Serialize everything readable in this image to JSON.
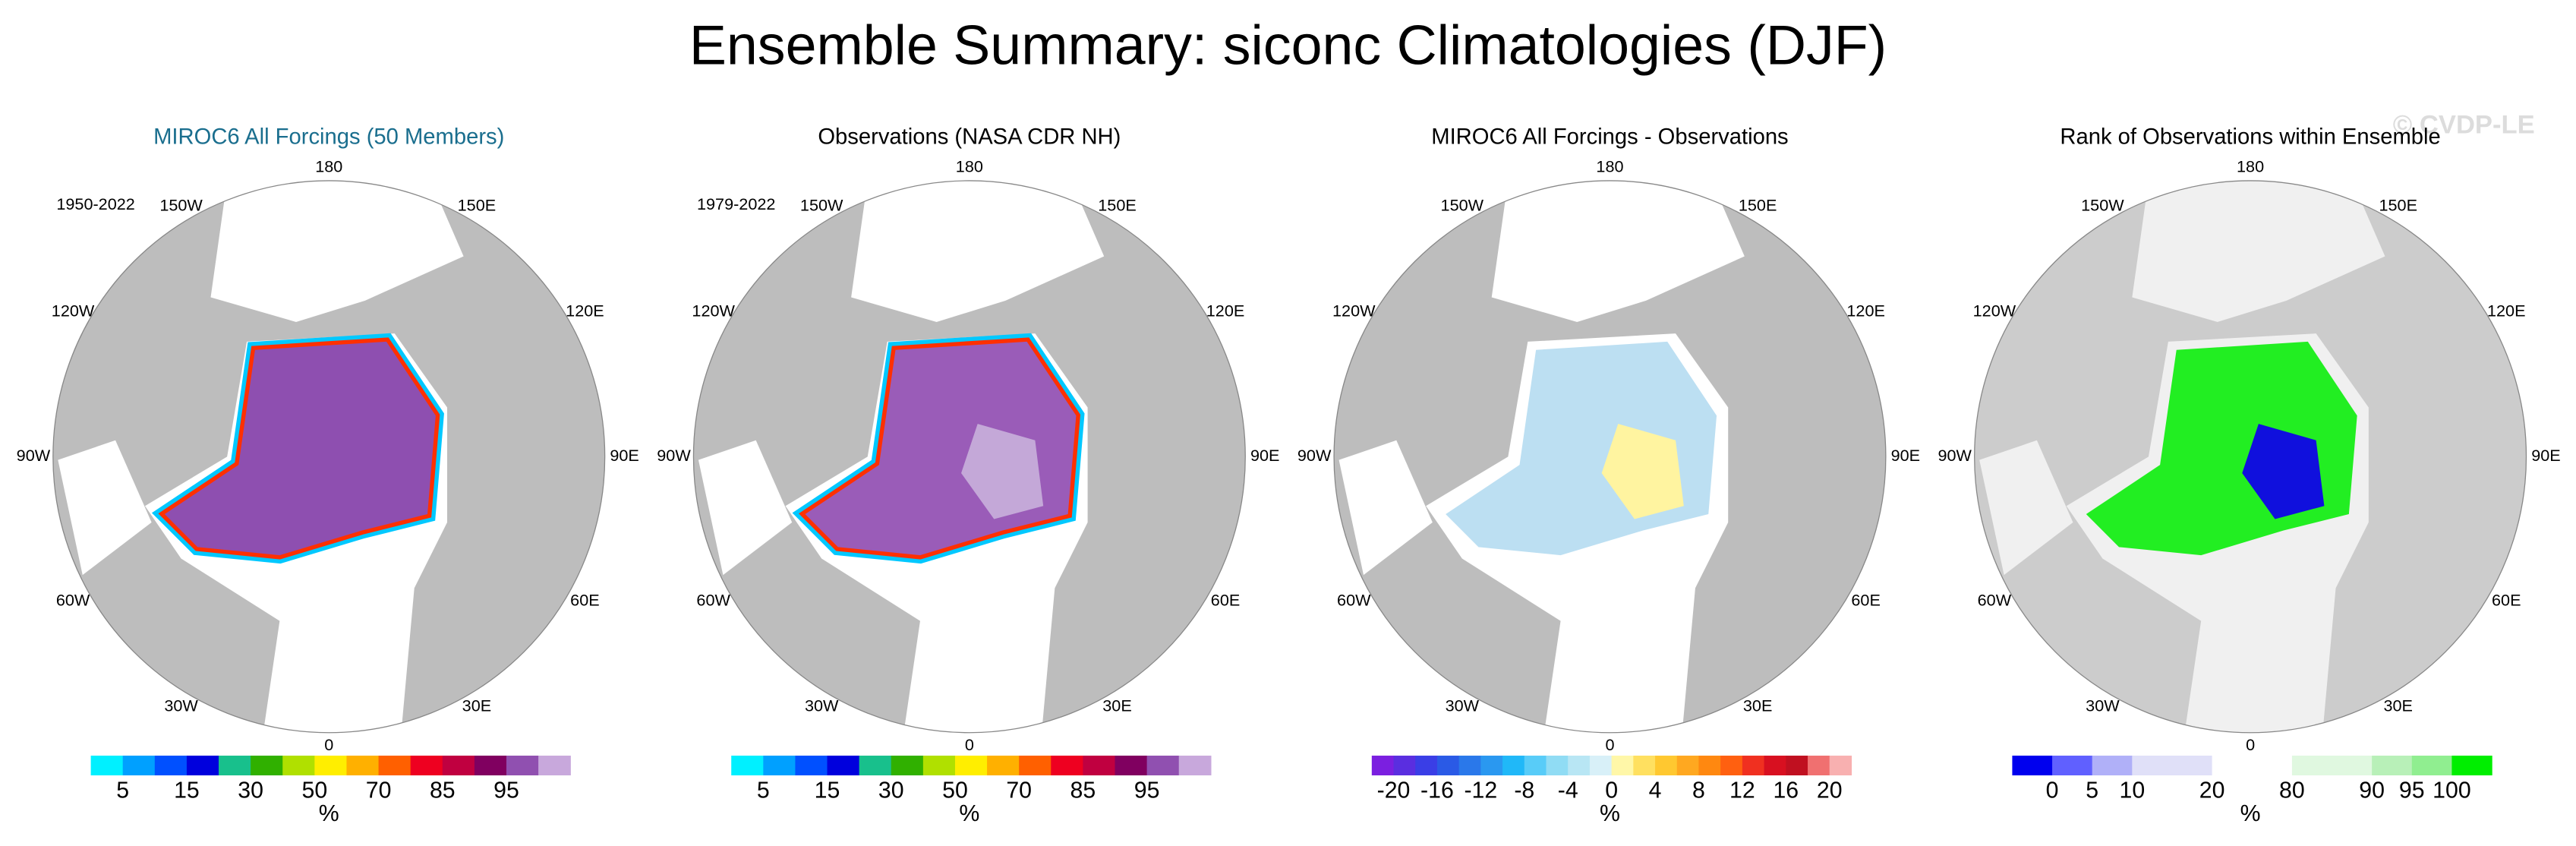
{
  "title": "Ensemble Summary: siconc Climatologies (DJF)",
  "watermark": "© CVDP-LE",
  "panels": [
    {
      "title": "MIROC6 All Forcings (50 Members)",
      "title_color": "#1a6e8e",
      "period": "1950-2022",
      "lon_labels": [
        "0",
        "30E",
        "60E",
        "90E",
        "120E",
        "150E",
        "180",
        "150W",
        "120W",
        "90W",
        "60W",
        "30W"
      ],
      "colorbar": {
        "colors": [
          "#00f0ff",
          "#00a0ff",
          "#0050ff",
          "#0000dd",
          "#18c08c",
          "#30b000",
          "#b0e000",
          "#ffee00",
          "#ffb000",
          "#ff6000",
          "#ee0020",
          "#c00040",
          "#800060",
          "#9050b0",
          "#c8a8dc"
        ],
        "labels": [
          "5",
          "15",
          "30",
          "50",
          "70",
          "85",
          "95"
        ],
        "unit": "%"
      }
    },
    {
      "title": "Observations (NASA CDR NH)",
      "title_color": "#000000",
      "period": "1979-2022",
      "lon_labels": [
        "0",
        "30E",
        "60E",
        "90E",
        "120E",
        "150E",
        "180",
        "150W",
        "120W",
        "90W",
        "60W",
        "30W"
      ],
      "colorbar": {
        "colors": [
          "#00f0ff",
          "#00a0ff",
          "#0050ff",
          "#0000dd",
          "#18c08c",
          "#30b000",
          "#b0e000",
          "#ffee00",
          "#ffb000",
          "#ff6000",
          "#ee0020",
          "#c00040",
          "#800060",
          "#9050b0",
          "#c8a8dc"
        ],
        "labels": [
          "5",
          "15",
          "30",
          "50",
          "70",
          "85",
          "95"
        ],
        "unit": "%"
      }
    },
    {
      "title": "MIROC6 All Forcings - Observations",
      "title_color": "#000000",
      "lon_labels": [
        "0",
        "30E",
        "60E",
        "90E",
        "120E",
        "150E",
        "180",
        "150W",
        "120W",
        "90W",
        "60W",
        "30W"
      ],
      "colorbar": {
        "colors": [
          "#7b1fe0",
          "#5a2ee0",
          "#3a3ee6",
          "#2a5ae6",
          "#2a78ea",
          "#2a98f0",
          "#20b8f8",
          "#58ccf8",
          "#90dcf4",
          "#b8e6f4",
          "#d8f0f8",
          "#fff7a8",
          "#ffe060",
          "#ffc830",
          "#ffa820",
          "#ff8810",
          "#ff6010",
          "#f03020",
          "#d81020",
          "#c01020",
          "#f07070",
          "#f8b0b0"
        ],
        "labels": [
          "-20",
          "-16",
          "-12",
          "-8",
          "-4",
          "0",
          "4",
          "8",
          "12",
          "16",
          "20"
        ],
        "unit": "%"
      }
    },
    {
      "title": "Rank of Observations within Ensemble",
      "title_color": "#000000",
      "lon_labels": [
        "0",
        "30E",
        "60E",
        "90E",
        "120E",
        "150E",
        "180",
        "150W",
        "120W",
        "90W",
        "60W",
        "30W"
      ],
      "colorbar": {
        "colors": [
          "#0000ee",
          "#6060ff",
          "#b0b0f8",
          "#e0e0f8",
          "#e0e0f8",
          "#ffffff",
          "#ffffff",
          "#e0f8e0",
          "#e0f8e0",
          "#b8f0b8",
          "#90ee90",
          "#00ee00"
        ],
        "labels": [
          "0",
          "5",
          "10",
          "20",
          "80",
          "90",
          "95",
          "100"
        ],
        "unit": "%"
      }
    }
  ]
}
